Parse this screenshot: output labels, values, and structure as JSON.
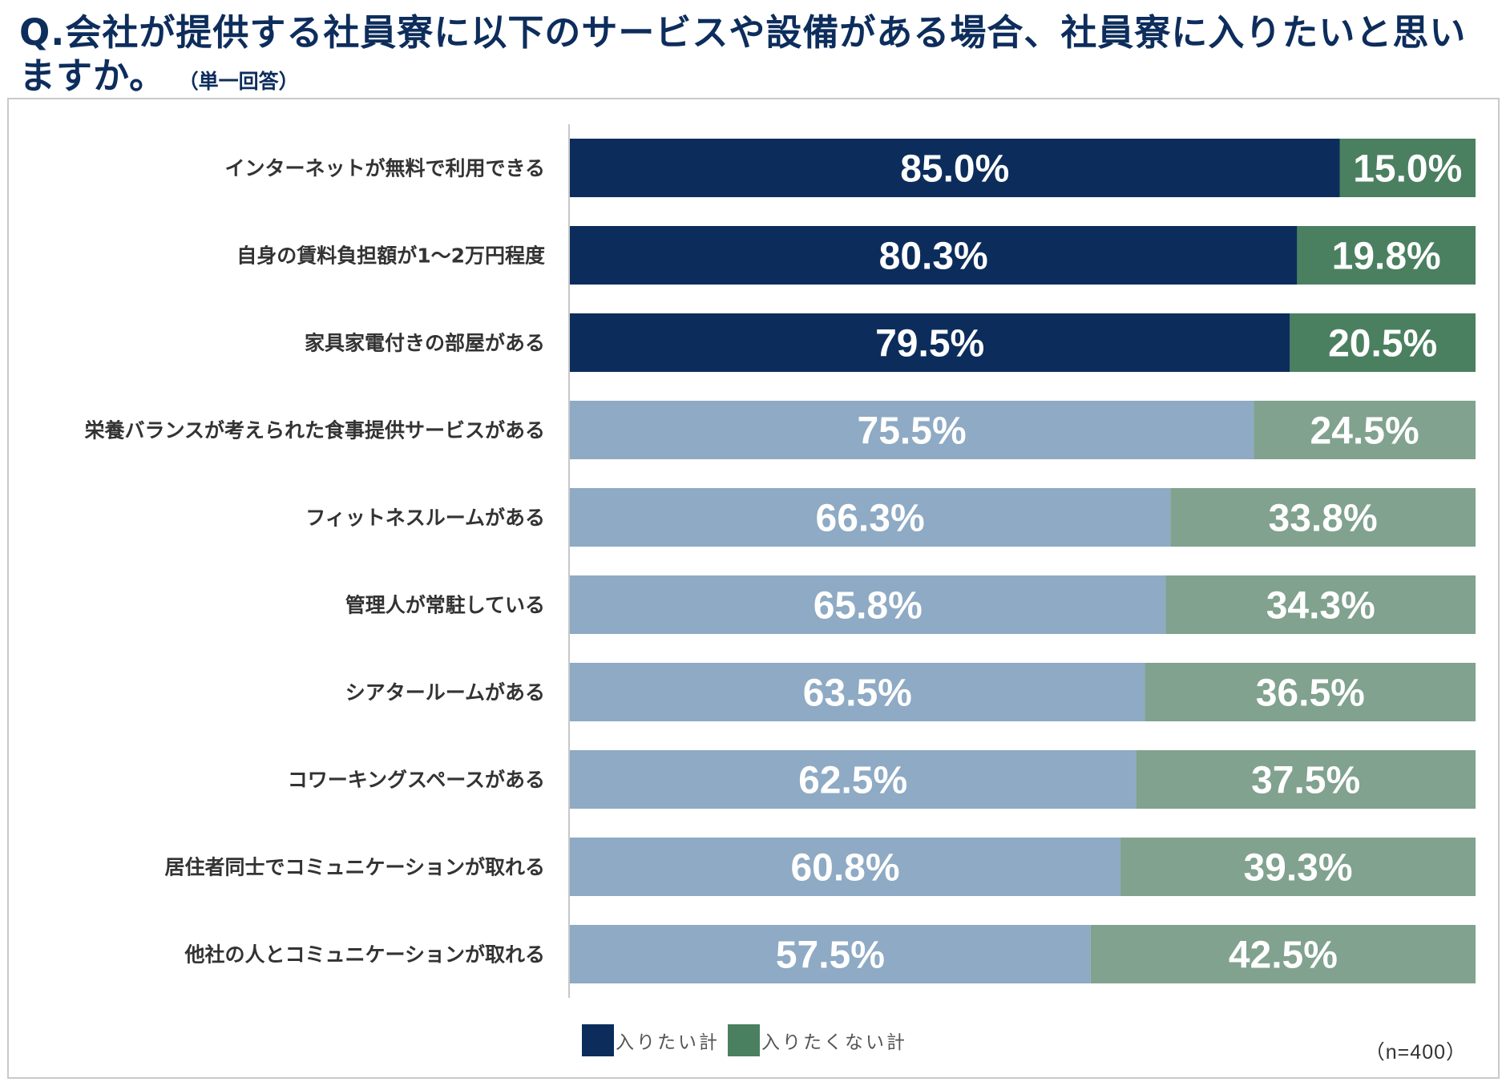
{
  "title": {
    "main": "Q.会社が提供する社員寮に以下のサービスや設備がある場合、社員寮に入りたいと思いますか。",
    "sub": "（単一回答）"
  },
  "colors": {
    "want_strong": "#0c2d5c",
    "not_want_strong": "#4a8060",
    "want_light": "#8eaac4",
    "not_want_light": "#80a28f",
    "axis": "#c8c8c8"
  },
  "legend": {
    "want": "入りたい計",
    "not_want": "入りたくない計"
  },
  "sample_size": "（n=400）",
  "chart_data": {
    "type": "bar",
    "orientation": "horizontal",
    "stacked": true,
    "percent": true,
    "xlim": [
      0,
      100
    ],
    "categories": [
      "インターネットが無料で利用できる",
      "自身の賃料負担額が1～2万円程度",
      "家具家電付きの部屋がある",
      "栄養バランスが考えられた食事提供サービスがある",
      "フィットネスルームがある",
      "管理人が常駐している",
      "シアタールームがある",
      "コワーキングスペースがある",
      "居住者同士でコミュニケーションが取れる",
      "他社の人とコミュニケーションが取れる"
    ],
    "highlight_top": 3,
    "series": [
      {
        "name": "入りたい計",
        "values": [
          85.0,
          80.3,
          79.5,
          75.5,
          66.3,
          65.8,
          63.5,
          62.5,
          60.8,
          57.5
        ],
        "labels": [
          "85.0%",
          "80.3%",
          "79.5%",
          "75.5%",
          "66.3%",
          "65.8%",
          "63.5%",
          "62.5%",
          "60.8%",
          "57.5%"
        ]
      },
      {
        "name": "入りたくない計",
        "values": [
          15.0,
          19.8,
          20.5,
          24.5,
          33.8,
          34.3,
          36.5,
          37.5,
          39.3,
          42.5
        ],
        "labels": [
          "15.0%",
          "19.8%",
          "20.5%",
          "24.5%",
          "33.8%",
          "34.3%",
          "36.5%",
          "37.5%",
          "39.3%",
          "42.5%"
        ]
      }
    ]
  }
}
